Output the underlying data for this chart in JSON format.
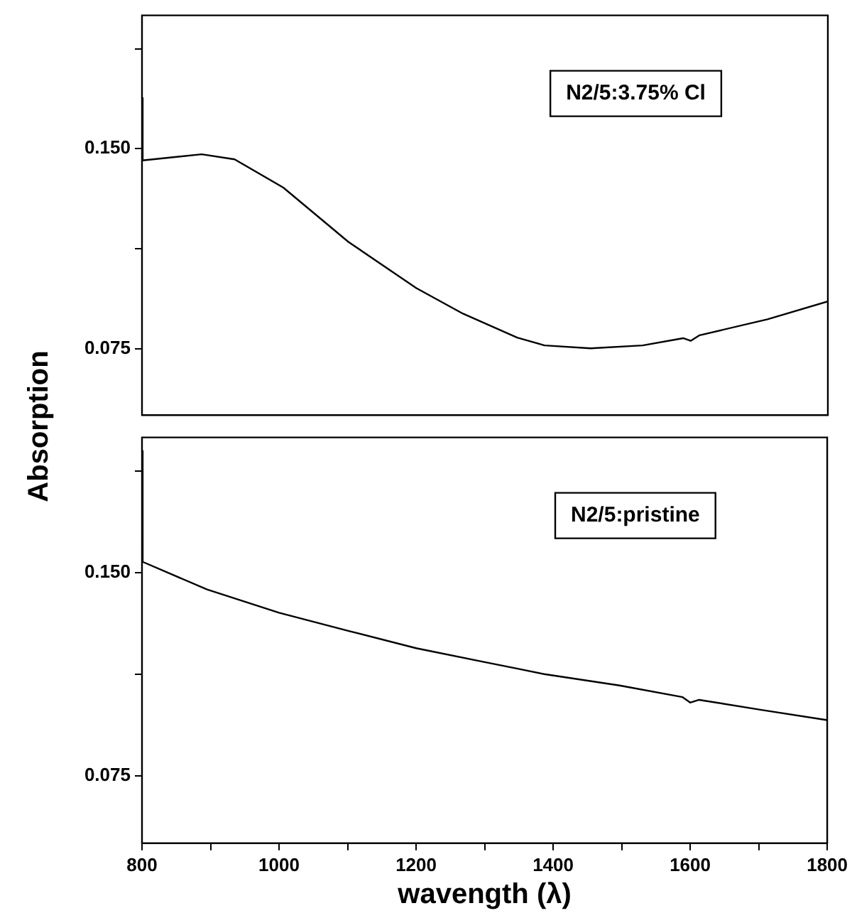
{
  "chart_data": [
    {
      "type": "line",
      "annotations": [
        "N2/5:3.75% Cl"
      ],
      "x": [
        800,
        801,
        887,
        935,
        1006,
        1101,
        1200,
        1268,
        1347,
        1387,
        1454,
        1530,
        1589,
        1600,
        1613,
        1712,
        1800
      ],
      "series": [
        {
          "color": "#000000",
          "values": [
            0.169,
            0.1456,
            0.1479,
            0.146,
            0.1354,
            0.115,
            0.0977,
            0.0881,
            0.0791,
            0.0762,
            0.0751,
            0.0762,
            0.0789,
            0.0779,
            0.08,
            0.086,
            0.0927
          ]
        }
      ],
      "xlim": [
        800,
        1800
      ],
      "ylim": [
        0.05,
        0.2
      ],
      "yticks": [
        {
          "value": 0.075,
          "label": "0.075"
        },
        {
          "value": 0.1125,
          "label": null
        },
        {
          "value": 0.15,
          "label": "0.150"
        },
        {
          "value": 0.1875,
          "label": null
        }
      ],
      "tick_labels": "y",
      "grid": false,
      "legend": false
    },
    {
      "type": "line",
      "annotations": [
        "N2/5:pristine"
      ],
      "xlabel": "wavength (λ)",
      "ylabel": "Absorption",
      "x": [
        800,
        801,
        895,
        1000,
        1101,
        1200,
        1299,
        1347,
        1387,
        1497,
        1589,
        1600,
        1613,
        1704,
        1800
      ],
      "series": [
        {
          "color": "#000000",
          "values": [
            0.195,
            0.154,
            0.1438,
            0.1352,
            0.1285,
            0.1221,
            0.117,
            0.1146,
            0.1125,
            0.1083,
            0.104,
            0.102,
            0.103,
            0.0993,
            0.0955
          ]
        }
      ],
      "xlim": [
        800,
        1800
      ],
      "xticks": [
        800,
        {
          "value": 900,
          "label": null
        },
        1000,
        {
          "value": 1100,
          "label": null
        },
        1200,
        {
          "value": 1300,
          "label": null
        },
        1400,
        {
          "value": 1500,
          "label": null
        },
        1600,
        {
          "value": 1700,
          "label": null
        },
        1800
      ],
      "ylim": [
        0.05,
        0.2
      ],
      "yticks": [
        {
          "value": 0.075,
          "label": "0.075"
        },
        {
          "value": 0.1125,
          "label": null
        },
        {
          "value": 0.15,
          "label": "0.150"
        },
        {
          "value": 0.1875,
          "label": null
        }
      ],
      "grid": false,
      "legend": false
    }
  ]
}
